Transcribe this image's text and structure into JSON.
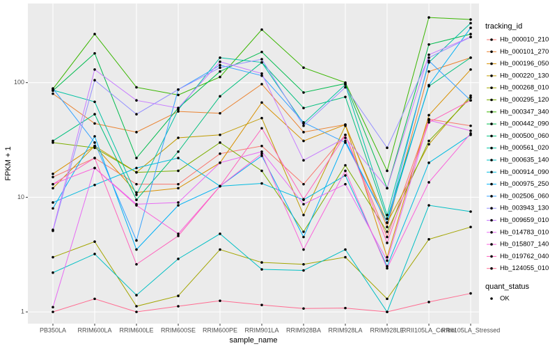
{
  "chart_data": {
    "type": "line",
    "x_label": "sample_name",
    "y_label": "FPKM + 1",
    "categories": [
      "PB350LA",
      "RRIM600LA",
      "RRIM600LE",
      "RRIM600SE",
      "RRIM600PE",
      "RRIM901LA",
      "RRIM928BA",
      "RRIM928LA",
      "RRIM928LE",
      "RRII105LA_Control",
      "RRII105LA_Stressed"
    ],
    "yscale": "log",
    "ylim": [
      0.79,
      490
    ],
    "yticks": [
      1,
      10,
      100
    ],
    "grid": true,
    "legend_title": "tracking_id",
    "legend_position": "right",
    "point_legend_title": "quant_status",
    "point_legend_labels": [
      "OK"
    ],
    "series": [
      {
        "name": "Hb_000010_210",
        "color": "#F8766D",
        "values": [
          15,
          22,
          13,
          13,
          24,
          28,
          13,
          35,
          4.5,
          48,
          42
        ]
      },
      {
        "name": "Hb_000101_270",
        "color": "#EA8331",
        "values": [
          80,
          44,
          37,
          56,
          54,
          97,
          37,
          43,
          5.5,
          125,
          165
        ]
      },
      {
        "name": "Hb_000196_050",
        "color": "#D89000",
        "values": [
          16,
          28,
          11,
          12,
          20,
          67,
          31,
          43,
          3.0,
          52,
          130
        ]
      },
      {
        "name": "Hb_000220_130",
        "color": "#C09B00",
        "values": [
          12,
          28,
          16.5,
          33,
          35,
          49,
          7,
          42,
          6,
          29,
          77
        ]
      },
      {
        "name": "Hb_000268_010",
        "color": "#A3A500",
        "values": [
          3.0,
          4.1,
          1.12,
          1.38,
          3.5,
          2.7,
          2.6,
          3.0,
          1.3,
          4.3,
          5.5
        ]
      },
      {
        "name": "Hb_000295_120",
        "color": "#7CAE00",
        "values": [
          30,
          27,
          16.5,
          17,
          30,
          17,
          5,
          19,
          5,
          31,
          74
        ]
      },
      {
        "name": "Hb_000347_340",
        "color": "#39B600",
        "values": [
          88,
          265,
          91,
          78,
          112,
          290,
          135,
          100,
          17,
          370,
          355
        ]
      },
      {
        "name": "Hb_000442_090",
        "color": "#00BB4E",
        "values": [
          85,
          180,
          22,
          60,
          125,
          185,
          82,
          98,
          12,
          215,
          265
        ]
      },
      {
        "name": "Hb_000500_060",
        "color": "#00BF7D",
        "values": [
          31,
          53,
          9.5,
          25,
          76,
          150,
          60,
          75,
          6.5,
          93,
          165
        ]
      },
      {
        "name": "Hb_000561_020",
        "color": "#00C1A3",
        "values": [
          86,
          68,
          10.5,
          58,
          165,
          150,
          44,
          96,
          7,
          150,
          330
        ]
      },
      {
        "name": "Hb_000635_140",
        "color": "#00BFC4",
        "values": [
          2.2,
          3.2,
          1.4,
          2.9,
          4.8,
          2.35,
          2.3,
          3.5,
          1.0,
          8.5,
          7.5
        ]
      },
      {
        "name": "Hb_000914_090",
        "color": "#00BAE0",
        "values": [
          9,
          12.8,
          18,
          22,
          12.5,
          13.2,
          9.5,
          15.5,
          2.5,
          20,
          35
        ]
      },
      {
        "name": "Hb_000975_250",
        "color": "#00B0F6",
        "values": [
          8,
          34,
          3.5,
          8.5,
          12.5,
          23,
          4.5,
          31,
          6,
          95,
          300
        ]
      },
      {
        "name": "Hb_002506_060",
        "color": "#35A2FF",
        "values": [
          89,
          30,
          4.2,
          87,
          142,
          115,
          45,
          30,
          6,
          155,
          70
        ]
      },
      {
        "name": "Hb_003943_130",
        "color": "#9590FF",
        "values": [
          5.1,
          105,
          53,
          87,
          135,
          160,
          42,
          91,
          27,
          165,
          250
        ]
      },
      {
        "name": "Hb_009659_010",
        "color": "#C77CFF",
        "values": [
          5.2,
          130,
          70,
          60,
          152,
          120,
          21,
          33,
          12,
          175,
          250
        ]
      },
      {
        "name": "Hb_014783_010",
        "color": "#E76BF3",
        "values": [
          1.1,
          18,
          8.7,
          9,
          20,
          25,
          8.7,
          13,
          2.8,
          47,
          38
        ]
      },
      {
        "name": "Hb_015807_140",
        "color": "#FA62DB",
        "values": [
          13,
          18,
          8.5,
          4.8,
          12.5,
          24,
          3.5,
          17,
          2.4,
          13.5,
          36
        ]
      },
      {
        "name": "Hb_019762_040",
        "color": "#FF62BC",
        "values": [
          13,
          22,
          2.6,
          4.6,
          12.5,
          40,
          9.6,
          35,
          4,
          45,
          70
        ]
      },
      {
        "name": "Hb_124055_010",
        "color": "#FF6C91",
        "values": [
          1.0,
          1.3,
          1.0,
          1.12,
          1.25,
          1.15,
          1.07,
          1.08,
          1.0,
          1.22,
          1.45
        ]
      }
    ]
  }
}
